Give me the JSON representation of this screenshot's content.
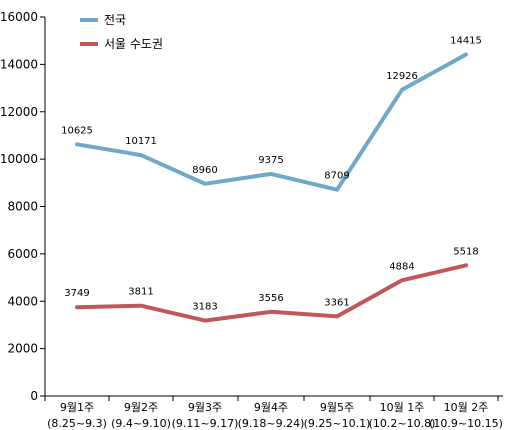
{
  "chart_data": {
    "type": "line",
    "categories": [
      [
        "9월1주",
        "(8.25~9.3)"
      ],
      [
        "9월2주",
        "(9.4~9.10)"
      ],
      [
        "9월3주",
        "(9.11~9.17)"
      ],
      [
        "9월4주",
        "(9.18~9.24)"
      ],
      [
        "9월5주",
        "(9.25~10.1)"
      ],
      [
        "10월  1주",
        "(10.2~10.8)"
      ],
      [
        "10월  2주",
        "(10.9~10.15)"
      ]
    ],
    "series": [
      {
        "name": "전국",
        "color": "#6fa8c8",
        "values": [
          10625,
          10171,
          8960,
          9375,
          8709,
          12926,
          14415
        ],
        "labels": [
          "10625",
          "10171",
          "8960",
          "9375",
          "8709",
          "12926",
          "14415"
        ]
      },
      {
        "name": "서울 수도권",
        "color": "#c0575b",
        "values": [
          3749,
          3811,
          3183,
          3556,
          3361,
          4884,
          5518
        ],
        "labels": [
          "3749",
          "3811",
          "3183",
          "3556",
          "3361",
          "4884",
          "5518"
        ]
      }
    ],
    "ylim": [
      0,
      16000
    ],
    "yticks": [
      0,
      2000,
      4000,
      6000,
      8000,
      10000,
      12000,
      14000,
      16000
    ],
    "ytick_labels": [
      "0",
      "2000",
      "4000",
      "6000",
      "8000",
      "10000",
      "12000",
      "14000",
      "16000"
    ],
    "legend_position": "top-left",
    "grid": false
  }
}
